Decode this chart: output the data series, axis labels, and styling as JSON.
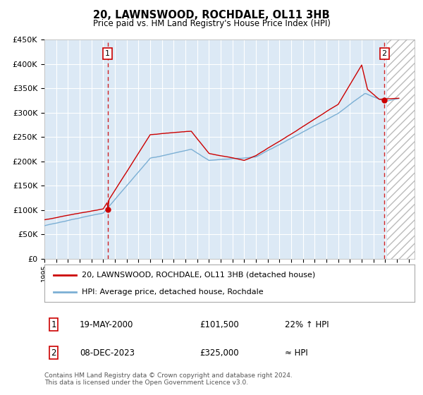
{
  "title": "20, LAWNSWOOD, ROCHDALE, OL11 3HB",
  "subtitle": "Price paid vs. HM Land Registry's House Price Index (HPI)",
  "ylabel_ticks": [
    "£0",
    "£50K",
    "£100K",
    "£150K",
    "£200K",
    "£250K",
    "£300K",
    "£350K",
    "£400K",
    "£450K"
  ],
  "ytick_values": [
    0,
    50000,
    100000,
    150000,
    200000,
    250000,
    300000,
    350000,
    400000,
    450000
  ],
  "ylim": [
    0,
    450000
  ],
  "xlim_start": 1995.0,
  "xlim_end": 2026.5,
  "sale1_date": 2000.38,
  "sale1_price": 101500,
  "sale2_date": 2023.93,
  "sale2_price": 325000,
  "bg_color": "#dce9f5",
  "hatch_start": 2024.17,
  "red_line_color": "#cc0000",
  "blue_line_color": "#7bafd4",
  "dashed_line_color": "#cc0000",
  "marker_color": "#cc0000",
  "legend_line1": "20, LAWNSWOOD, ROCHDALE, OL11 3HB (detached house)",
  "legend_line2": "HPI: Average price, detached house, Rochdale",
  "footer": "Contains HM Land Registry data © Crown copyright and database right 2024.\nThis data is licensed under the Open Government Licence v3.0.",
  "xtick_years": [
    1995,
    1996,
    1997,
    1998,
    1999,
    2000,
    2001,
    2002,
    2003,
    2004,
    2005,
    2006,
    2007,
    2008,
    2009,
    2010,
    2011,
    2012,
    2013,
    2014,
    2015,
    2016,
    2017,
    2018,
    2019,
    2020,
    2021,
    2022,
    2023,
    2024,
    2025,
    2026
  ]
}
